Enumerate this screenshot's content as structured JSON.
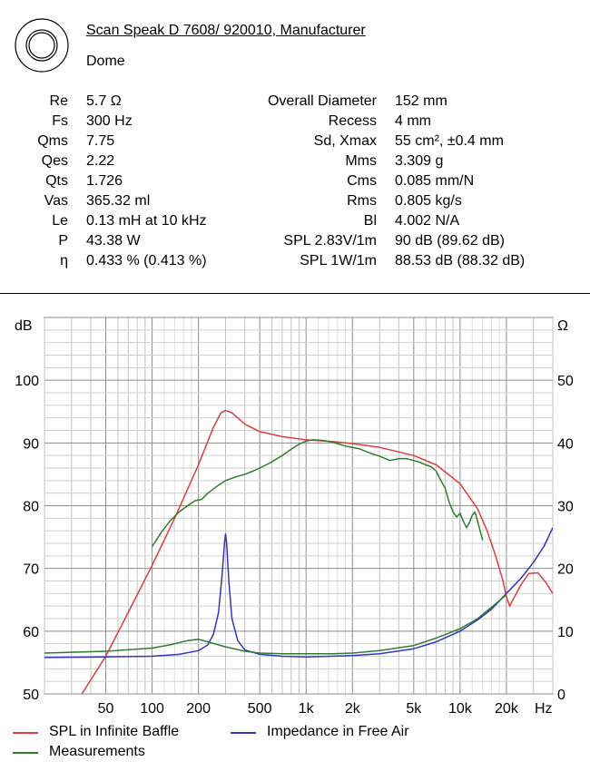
{
  "header": {
    "title": "Scan Speak D 7608/ 920010, Manufacturer",
    "subtitle": "Dome"
  },
  "params_left": [
    {
      "label": "Re",
      "value": "5.7 Ω"
    },
    {
      "label": "Fs",
      "value": "300 Hz"
    },
    {
      "label": "Qms",
      "value": "7.75"
    },
    {
      "label": "Qes",
      "value": "2.22"
    },
    {
      "label": "Qts",
      "value": "1.726"
    },
    {
      "label": "Vas",
      "value": "365.32 ml"
    },
    {
      "label": "Le",
      "value": "0.13 mH at 10 kHz"
    },
    {
      "label": "P",
      "value": "43.38 W"
    },
    {
      "label": "η",
      "value": "0.433 % (0.413 %)"
    }
  ],
  "params_right": [
    {
      "label": "Overall Diameter",
      "value": "152 mm"
    },
    {
      "label": "Recess",
      "value": "4 mm"
    },
    {
      "label": "Sd, Xmax",
      "value": "55 cm², ±0.4 mm"
    },
    {
      "label": "Mms",
      "value": "3.309 g"
    },
    {
      "label": "Cms",
      "value": "0.085 mm/N"
    },
    {
      "label": "Rms",
      "value": "0.805 kg/s"
    },
    {
      "label": "Bl",
      "value": "4.002 N/A"
    },
    {
      "label": "SPL 2.83V/1m",
      "value": "90 dB (89.62 dB)"
    },
    {
      "label": "SPL 1W/1m",
      "value": "88.53 dB (88.32 dB)"
    }
  ],
  "chart_data": {
    "type": "line",
    "x_scale": "log",
    "xlim": [
      20,
      40000
    ],
    "ylim_left": [
      50,
      110
    ],
    "ylim_right": [
      0,
      60
    ],
    "yunit_left": "dB",
    "yunit_right": "Ω",
    "xunit": "Hz",
    "x_ticks": [
      {
        "value": 50,
        "label": "50"
      },
      {
        "value": 100,
        "label": "100"
      },
      {
        "value": 200,
        "label": "200"
      },
      {
        "value": 500,
        "label": "500"
      },
      {
        "value": 1000,
        "label": "1k"
      },
      {
        "value": 2000,
        "label": "2k"
      },
      {
        "value": 5000,
        "label": "5k"
      },
      {
        "value": 10000,
        "label": "10k"
      },
      {
        "value": 20000,
        "label": "20k"
      }
    ],
    "y_ticks_left": [
      "50",
      "60",
      "70",
      "80",
      "90",
      "100"
    ],
    "y_ticks_right": [
      "0",
      "10",
      "20",
      "30",
      "40",
      "50"
    ],
    "grid": true,
    "legend_position": "bottom",
    "series": [
      {
        "name": "SPL in Infinite Baffle",
        "axis": "left",
        "color": "#e03c3c",
        "x": [
          35,
          50,
          70,
          100,
          140,
          200,
          250,
          280,
          300,
          330,
          400,
          500,
          700,
          1000,
          1500,
          2000,
          3000,
          5000,
          7000,
          10000,
          13000,
          15000,
          17000,
          19000,
          20000,
          21000,
          22000,
          25000,
          28000,
          32000,
          36000,
          40000
        ],
        "y": [
          50,
          56,
          63,
          70.5,
          78,
          86.5,
          92.5,
          94.8,
          95.2,
          94.8,
          93,
          91.8,
          91,
          90.5,
          90.2,
          89.9,
          89.3,
          88,
          86.5,
          83.5,
          79.5,
          76,
          72,
          68,
          65.5,
          64,
          65,
          67.5,
          69.2,
          69.3,
          67.8,
          66
        ]
      },
      {
        "name": "Impedance in Free Air",
        "axis": "right",
        "color": "#3333cc",
        "x": [
          20,
          50,
          100,
          150,
          200,
          230,
          250,
          270,
          285,
          295,
          300,
          305,
          315,
          330,
          360,
          400,
          500,
          700,
          1000,
          2000,
          3000,
          5000,
          7000,
          10000,
          13000,
          16000,
          20000,
          25000,
          30000,
          35000,
          40000
        ],
        "y": [
          5.8,
          5.9,
          6,
          6.3,
          6.9,
          7.8,
          9.5,
          13,
          19,
          24,
          25.5,
          24,
          18,
          12,
          8.5,
          7,
          6.3,
          6,
          5.9,
          6.1,
          6.4,
          7.2,
          8.3,
          10,
          11.8,
          13.5,
          16,
          18.5,
          21,
          23.5,
          26.5
        ]
      },
      {
        "name": "Measurements",
        "axis": "mixed",
        "color": "#2e7d2e",
        "spl": {
          "x": [
            100,
            115,
            130,
            150,
            170,
            190,
            210,
            230,
            260,
            300,
            350,
            400,
            450,
            500,
            550,
            600,
            700,
            800,
            900,
            1000,
            1100,
            1300,
            1500,
            1800,
            2200,
            2600,
            3000,
            3500,
            4000,
            4500,
            5000,
            5500,
            6000,
            6500,
            7000,
            7500,
            8000,
            8500,
            9000,
            9500,
            10000,
            10500,
            11000,
            11500,
            12000,
            12500,
            13000,
            14000
          ],
          "y": [
            73.5,
            75.8,
            77.5,
            79,
            80,
            80.8,
            81,
            82,
            83,
            84,
            84.6,
            85,
            85.5,
            86,
            86.5,
            87,
            88,
            89,
            89.8,
            90.3,
            90.5,
            90.4,
            90.1,
            89.5,
            89.1,
            88.4,
            87.9,
            87.2,
            87.5,
            87.5,
            87.2,
            86.9,
            86.5,
            86.2,
            85.5,
            84,
            82.8,
            80.5,
            79,
            78.2,
            78.8,
            77.5,
            76.5,
            77.3,
            78.5,
            79,
            77.5,
            74.5
          ]
        },
        "impedance": {
          "x": [
            20,
            50,
            100,
            130,
            170,
            200,
            230,
            300,
            400,
            500,
            700,
            1000,
            1500,
            2000,
            3000,
            5000,
            7000,
            10000,
            13000,
            16000,
            20000
          ],
          "y": [
            6.5,
            6.8,
            7.3,
            7.8,
            8.5,
            8.7,
            8.3,
            7.5,
            6.8,
            6.5,
            6.4,
            6.4,
            6.4,
            6.5,
            6.9,
            7.7,
            8.9,
            10.4,
            12,
            13.8,
            15.8
          ]
        }
      }
    ]
  }
}
